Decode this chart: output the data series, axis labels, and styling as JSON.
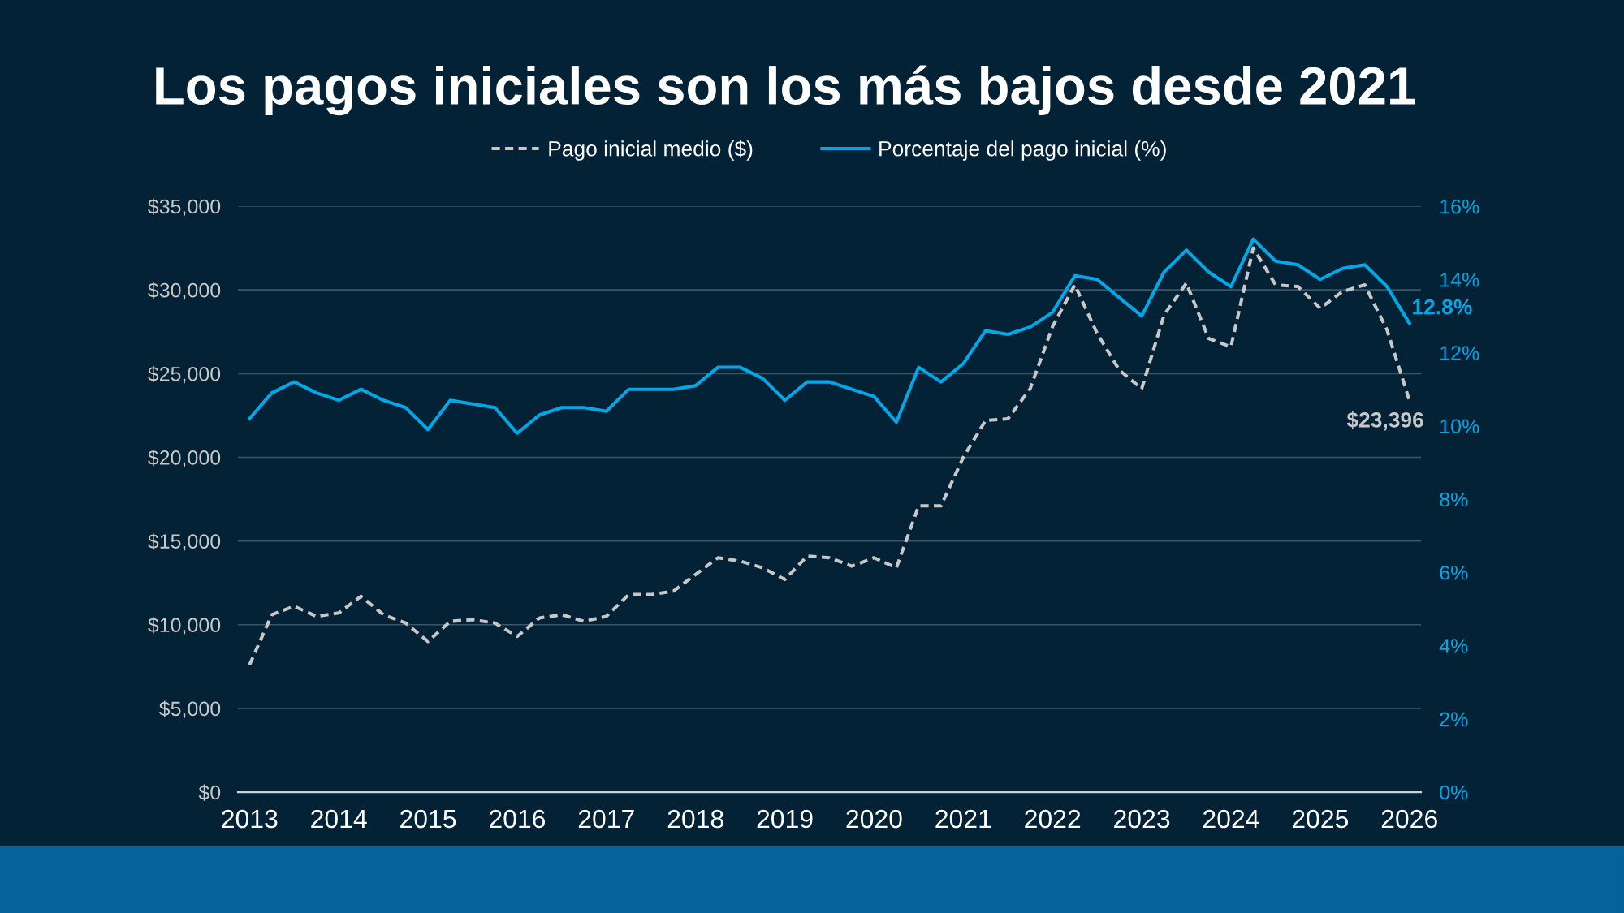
{
  "chart_data": {
    "type": "line",
    "title": "Los pagos iniciales son los más bajos desde 2021",
    "x": [
      2013,
      2013.25,
      2013.5,
      2013.75,
      2014,
      2014.25,
      2014.5,
      2014.75,
      2015,
      2015.25,
      2015.5,
      2015.75,
      2016,
      2016.25,
      2016.5,
      2016.75,
      2017,
      2017.25,
      2017.5,
      2017.75,
      2018,
      2018.25,
      2018.5,
      2018.75,
      2019,
      2019.25,
      2019.5,
      2019.75,
      2020,
      2020.25,
      2020.5,
      2020.75,
      2021,
      2021.25,
      2021.5,
      2021.75,
      2022,
      2022.25,
      2022.5,
      2022.75,
      2023,
      2023.25,
      2023.5,
      2023.75,
      2024,
      2024.25,
      2024.5,
      2024.75,
      2025,
      2025.25,
      2025.5,
      2025.75,
      2026
    ],
    "series": [
      {
        "name": "Pago inicial medio ($)",
        "color": "#c8c8c8",
        "line_style": "dashed",
        "values": [
          7600,
          10600,
          11100,
          10500,
          10700,
          11700,
          10600,
          10100,
          9000,
          10200,
          10300,
          10100,
          9300,
          10400,
          10600,
          10200,
          10500,
          11800,
          11800,
          12000,
          13000,
          14000,
          13800,
          13400,
          12700,
          14100,
          14000,
          13500,
          14000,
          13400,
          17100,
          17100,
          20000,
          22200,
          22300,
          24100,
          27800,
          30300,
          27400,
          25200,
          24100,
          28500,
          30400,
          27100,
          26600,
          32500,
          30300,
          30200,
          28900,
          29900,
          30300,
          27600,
          23396
        ],
        "value_labels": [
          null,
          null,
          null,
          null,
          null,
          null,
          null,
          null,
          null,
          null,
          null,
          null,
          null,
          null,
          null,
          null,
          null,
          null,
          null,
          null,
          null,
          null,
          null,
          null,
          null,
          null,
          null,
          null,
          null,
          null,
          null,
          null,
          null,
          null,
          null,
          null,
          null,
          null,
          null,
          null,
          null,
          null,
          null,
          null,
          null,
          null,
          null,
          null,
          null,
          null,
          null,
          null,
          "$23,396"
        ]
      },
      {
        "name": "Porcentaje del pago inicial (%)",
        "color": "#00a8e8",
        "line_style": "solid",
        "axis": "y2",
        "values": [
          10.2,
          10.9,
          11.2,
          10.9,
          10.7,
          11.0,
          10.7,
          10.5,
          9.9,
          10.7,
          10.6,
          10.5,
          9.8,
          10.3,
          10.5,
          10.5,
          10.4,
          11.0,
          11.0,
          11.0,
          11.1,
          11.6,
          11.6,
          11.3,
          10.7,
          11.2,
          11.2,
          11.0,
          10.8,
          10.1,
          11.6,
          11.2,
          11.7,
          12.6,
          12.5,
          12.7,
          13.1,
          14.1,
          14.0,
          13.5,
          13.0,
          14.2,
          14.8,
          14.2,
          13.8,
          15.1,
          14.5,
          14.4,
          14.0,
          14.3,
          14.4,
          13.8,
          12.8
        ],
        "value_labels": [
          null,
          null,
          null,
          null,
          null,
          null,
          null,
          null,
          null,
          null,
          null,
          null,
          null,
          null,
          null,
          null,
          null,
          null,
          null,
          null,
          null,
          null,
          null,
          null,
          null,
          null,
          null,
          null,
          null,
          null,
          null,
          null,
          null,
          null,
          null,
          null,
          null,
          null,
          null,
          null,
          null,
          null,
          null,
          null,
          null,
          null,
          null,
          null,
          null,
          null,
          null,
          null,
          "12.8%"
        ]
      }
    ],
    "xlim": [
      2012.87,
      2026.13
    ],
    "xticks": [
      2013,
      2014,
      2015,
      2016,
      2017,
      2018,
      2019,
      2020,
      2021,
      2022,
      2023,
      2024,
      2025,
      2026
    ],
    "ylim": [
      0,
      35000
    ],
    "yticks": [
      {
        "value": 0,
        "label": "$0"
      },
      {
        "value": 5000,
        "label": "$5,000"
      },
      {
        "value": 10000,
        "label": "$10,000"
      },
      {
        "value": 15000,
        "label": "$15,000"
      },
      {
        "value": 20000,
        "label": "$20,000"
      },
      {
        "value": 25000,
        "label": "$25,000"
      },
      {
        "value": 30000,
        "label": "$30,000"
      },
      {
        "value": 35000,
        "label": "$35,000"
      }
    ],
    "y2lim": [
      0,
      16
    ],
    "y2ticks": [
      {
        "value": 0,
        "label": "0%"
      },
      {
        "value": 2,
        "label": "2%"
      },
      {
        "value": 4,
        "label": "4%"
      },
      {
        "value": 6,
        "label": "6%"
      },
      {
        "value": 8,
        "label": "8%"
      },
      {
        "value": 10,
        "label": "10%"
      },
      {
        "value": 12,
        "label": "12%"
      },
      {
        "value": 14,
        "label": "14%"
      },
      {
        "value": 16,
        "label": "16%"
      }
    ],
    "grid": "y",
    "legend": "top"
  }
}
